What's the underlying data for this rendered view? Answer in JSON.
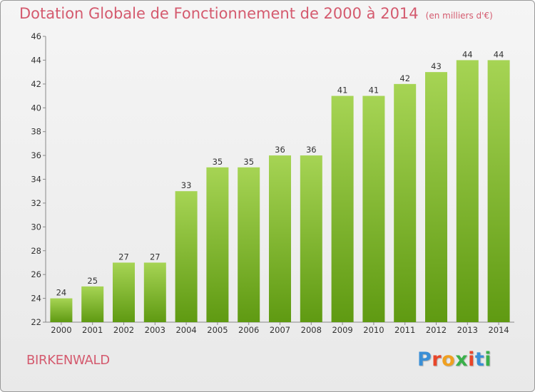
{
  "title": "Dotation Globale de Fonctionnement de 2000 à 2014",
  "unit": "(en milliers d'€)",
  "commune": "BIRKENWALD",
  "logo": {
    "text": "Proxiti",
    "colors": [
      "#3a8fd6",
      "#e8462a",
      "#f0a020",
      "#3ab04a",
      "#e8462a",
      "#3a8fd6",
      "#3ab04a"
    ]
  },
  "colors": {
    "title": "#d45a6e",
    "bar_top": "#a6d454",
    "bar_bottom": "#5f9a12"
  },
  "chart_data": {
    "type": "bar",
    "categories": [
      "2000",
      "2001",
      "2002",
      "2003",
      "2004",
      "2005",
      "2006",
      "2007",
      "2008",
      "2009",
      "2010",
      "2011",
      "2012",
      "2013",
      "2014"
    ],
    "values": [
      24,
      25,
      27,
      27,
      33,
      35,
      35,
      36,
      36,
      41,
      41,
      42,
      43,
      44,
      44
    ],
    "title": "Dotation Globale de Fonctionnement de 2000 à 2014",
    "xlabel": "",
    "ylabel": "",
    "ylim": [
      22,
      46
    ],
    "yticks": [
      22,
      24,
      26,
      28,
      30,
      32,
      34,
      36,
      38,
      40,
      42,
      44,
      46
    ],
    "grid": false,
    "data_labels": true
  }
}
